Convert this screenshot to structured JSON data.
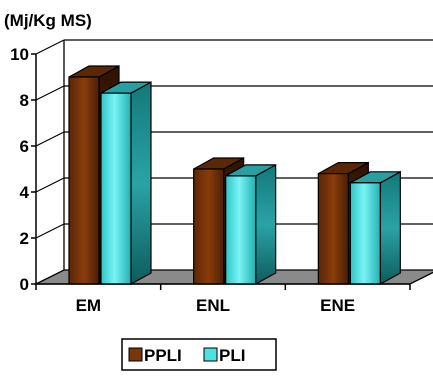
{
  "chart_data": {
    "type": "bar",
    "title": "",
    "unit_label": "(Mj/Kg MS)",
    "xlabel": "",
    "ylabel": "",
    "categories": [
      "EM",
      "ENL",
      "ENE"
    ],
    "series": [
      {
        "name": "PPLI",
        "values": [
          9.0,
          5.0,
          4.8
        ]
      },
      {
        "name": "PLI",
        "values": [
          8.3,
          4.7,
          4.4
        ]
      }
    ],
    "ylim": [
      0,
      10
    ],
    "yticks": [
      "0",
      "2",
      "4",
      "6",
      "8",
      "10"
    ],
    "grid": true,
    "three_d": true,
    "legend_position": "bottom-center",
    "colors": {
      "PPLI": "#7a3508",
      "PPLI_side": "#3d1804",
      "PPLI_top": "#5a2806",
      "PLI": "#4fe0e2",
      "PLI_side": "#0f6668",
      "PLI_top": "#2a9fa1",
      "floor": "#8a8a8a",
      "axis": "#000000",
      "gridline": "#000000"
    }
  }
}
